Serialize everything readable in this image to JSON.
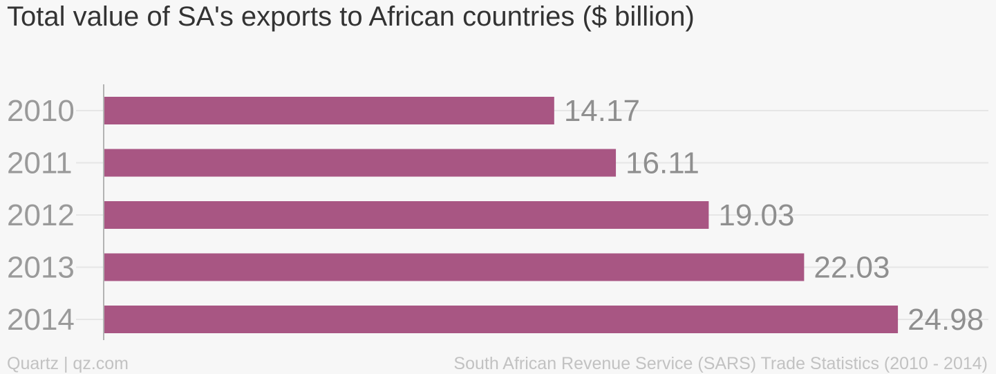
{
  "title": "Total value of SA's exports to African countries ($ billion)",
  "footer": {
    "credit": "Quartz | qz.com",
    "source": "South African Revenue Service (SARS) Trade Statistics (2010 - 2014)"
  },
  "colors": {
    "bar": "#a85683",
    "background": "#f7f7f7",
    "gridline": "#e6e6e6",
    "axis": "#b3b3b3",
    "tick_label": "#9a9a9a",
    "value_label": "#8f8f8f"
  },
  "chart_data": {
    "type": "bar",
    "orientation": "horizontal",
    "categories": [
      "2010",
      "2011",
      "2012",
      "2013",
      "2014"
    ],
    "values": [
      14.17,
      16.11,
      19.03,
      22.03,
      24.98
    ],
    "data_labels": [
      "14.17",
      "16.11",
      "19.03",
      "22.03",
      "24.98"
    ],
    "xlim": [
      0,
      25
    ],
    "grid": true,
    "legend": "none"
  }
}
